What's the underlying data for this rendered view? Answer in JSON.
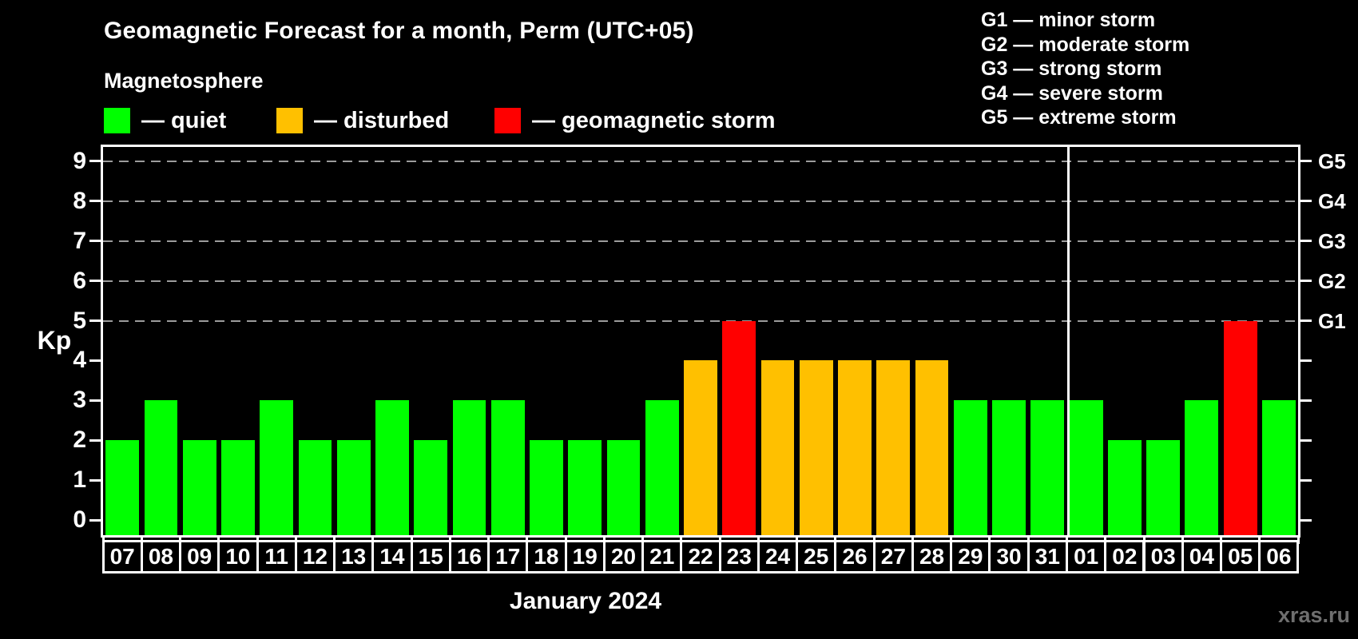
{
  "header": {
    "title": "Geomagnetic Forecast for a month, Perm (UTC+05)",
    "subtitle": "Magnetosphere"
  },
  "legend": [
    {
      "key": "quiet",
      "label": "— quiet",
      "color": "#00ff00"
    },
    {
      "key": "disturbed",
      "label": "— disturbed",
      "color": "#ffc000"
    },
    {
      "key": "storm",
      "label": "— geomagnetic storm",
      "color": "#ff0000"
    }
  ],
  "storm_scale": [
    "G1 — minor storm",
    "G2 — moderate storm",
    "G3 — strong storm",
    "G4 — severe storm",
    "G5 — extreme storm"
  ],
  "watermark": "xras.ru",
  "colors": {
    "quiet": "#00ff00",
    "disturbed": "#ffc000",
    "storm": "#ff0000",
    "grid": "#9c9c9c",
    "axis": "#ffffff",
    "background": "#000000",
    "watermark": "#6f6f6f"
  },
  "chart_data": {
    "type": "bar",
    "title": "Geomagnetic Forecast for a month, Perm (UTC+05)",
    "subtitle": "Magnetosphere",
    "ylabel": "Kp",
    "month_label": "January 2024",
    "ylim": [
      0,
      9
    ],
    "y_ticks": [
      0,
      1,
      2,
      3,
      4,
      5,
      6,
      7,
      8,
      9
    ],
    "gridlines_at": [
      5,
      6,
      7,
      8,
      9
    ],
    "grid_style": "dashed horizontal, Kp 5-9 only",
    "legend_position": "top-left",
    "right_axis_labels": [
      {
        "label": "G1",
        "kp": 5
      },
      {
        "label": "G2",
        "kp": 6
      },
      {
        "label": "G3",
        "kp": 7
      },
      {
        "label": "G4",
        "kp": 8
      },
      {
        "label": "G5",
        "kp": 9
      }
    ],
    "categories": [
      "07",
      "08",
      "09",
      "10",
      "11",
      "12",
      "13",
      "14",
      "15",
      "16",
      "17",
      "18",
      "19",
      "20",
      "21",
      "22",
      "23",
      "24",
      "25",
      "26",
      "27",
      "28",
      "29",
      "30",
      "31",
      "01",
      "02",
      "03",
      "04",
      "05",
      "06"
    ],
    "values": [
      2,
      3,
      2,
      2,
      3,
      2,
      2,
      3,
      2,
      3,
      3,
      2,
      2,
      2,
      3,
      4,
      5,
      4,
      4,
      4,
      4,
      4,
      3,
      3,
      3,
      3,
      2,
      2,
      3,
      5,
      3
    ],
    "statuses": [
      "quiet",
      "quiet",
      "quiet",
      "quiet",
      "quiet",
      "quiet",
      "quiet",
      "quiet",
      "quiet",
      "quiet",
      "quiet",
      "quiet",
      "quiet",
      "quiet",
      "quiet",
      "disturbed",
      "storm",
      "disturbed",
      "disturbed",
      "disturbed",
      "disturbed",
      "disturbed",
      "quiet",
      "quiet",
      "quiet",
      "quiet",
      "quiet",
      "quiet",
      "quiet",
      "storm",
      "quiet"
    ],
    "month_boundary_after_index": 24
  }
}
